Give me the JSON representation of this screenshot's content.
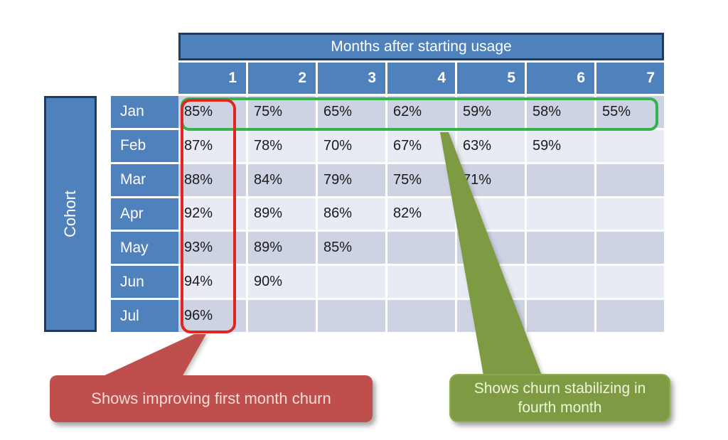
{
  "chart_data": {
    "type": "table",
    "title": "Months after starting usage",
    "cohort_axis_label": "Cohort",
    "columns": [
      "1",
      "2",
      "3",
      "4",
      "5",
      "6",
      "7"
    ],
    "rows": [
      {
        "label": "Jan",
        "values": [
          "85%",
          "75%",
          "65%",
          "62%",
          "59%",
          "58%",
          "55%"
        ]
      },
      {
        "label": "Feb",
        "values": [
          "87%",
          "78%",
          "70%",
          "67%",
          "63%",
          "59%",
          ""
        ]
      },
      {
        "label": "Mar",
        "values": [
          "88%",
          "84%",
          "79%",
          "75%",
          "71%",
          "",
          ""
        ]
      },
      {
        "label": "Apr",
        "values": [
          "92%",
          "89%",
          "86%",
          "82%",
          "",
          "",
          ""
        ]
      },
      {
        "label": "May",
        "values": [
          "93%",
          "89%",
          "85%",
          "",
          "",
          "",
          ""
        ]
      },
      {
        "label": "Jun",
        "values": [
          "94%",
          "90%",
          "",
          "",
          "",
          "",
          ""
        ]
      },
      {
        "label": "Jul",
        "values": [
          "96%",
          "",
          "",
          "",
          "",
          "",
          ""
        ]
      }
    ],
    "annotations": [
      {
        "highlight": "column 1 (Jan–Jul first month values)",
        "highlight_color": "#e2251f",
        "callout_text": "Shows improving first month churn",
        "callout_fill": "#bf4f4c"
      },
      {
        "highlight": "Jan cohort row (months 1–7)",
        "highlight_color": "#33b34c",
        "callout_text": "Shows churn stabilizing in fourth month",
        "callout_fill": "#7e9b44"
      }
    ],
    "layout_hints": {
      "grid_gap_color": "#ffffff",
      "row_color_dark": "#cdd3e3",
      "row_color_light": "#e9ebf4",
      "header_fill": "#4f81bd",
      "header_border": "#1e3c61",
      "header_text_color": "#ffffff"
    }
  },
  "callouts": {
    "red_text": "Shows improving first month churn",
    "green_text": "Shows churn stabilizing in fourth month"
  }
}
